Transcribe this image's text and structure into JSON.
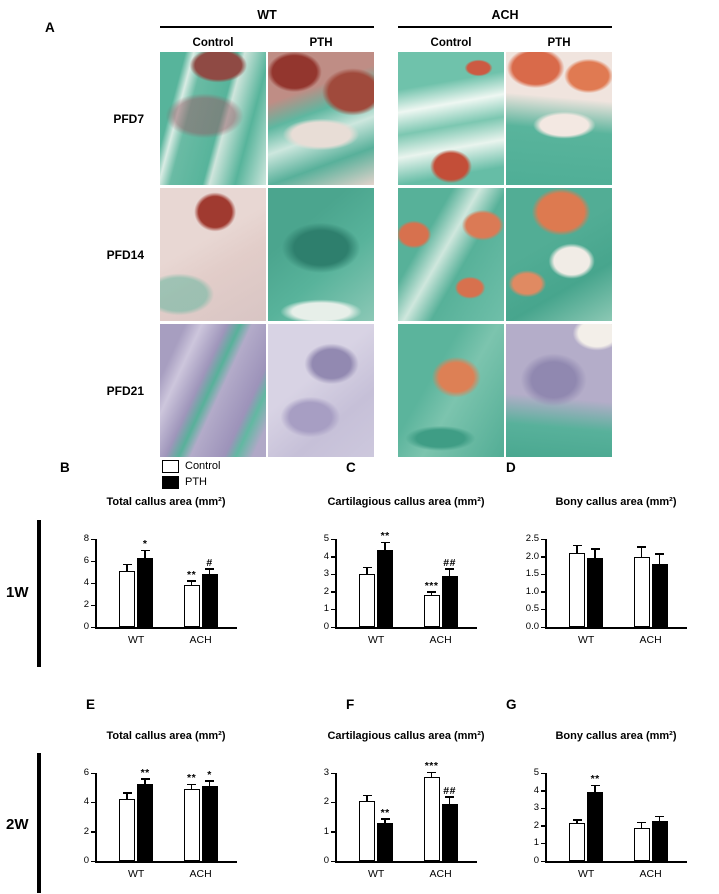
{
  "panel_a": {
    "label": "A",
    "group_headers": [
      "WT",
      "ACH"
    ],
    "column_headers": [
      "Control",
      "PTH",
      "Control",
      "PTH"
    ],
    "row_labels": [
      "PFD7",
      "PFD14",
      "PFD21"
    ]
  },
  "legend": {
    "items": [
      {
        "label": "Control",
        "color": "#ffffff"
      },
      {
        "label": "PTH",
        "color": "#000000"
      }
    ]
  },
  "time_groups": [
    {
      "label": "1W",
      "panels": [
        "B",
        "C",
        "D"
      ]
    },
    {
      "label": "2W",
      "panels": [
        "E",
        "F",
        "G"
      ]
    }
  ],
  "chart_data": [
    {
      "panel": "B",
      "timepoint": "1W",
      "type": "bar",
      "title": "Total callus area (mm²)",
      "categories": [
        "WT",
        "ACH"
      ],
      "series": [
        {
          "name": "Control",
          "color": "#ffffff",
          "values": [
            5.1,
            3.8
          ],
          "errors": [
            0.5,
            0.3
          ],
          "sig": [
            "",
            "**"
          ]
        },
        {
          "name": "PTH",
          "color": "#000000",
          "values": [
            6.3,
            4.8
          ],
          "errors": [
            0.6,
            0.4
          ],
          "sig": [
            "*",
            "#"
          ]
        }
      ],
      "ylim": [
        0,
        8
      ],
      "yticks": [
        "0",
        "2",
        "4",
        "6",
        "8"
      ]
    },
    {
      "panel": "C",
      "timepoint": "1W",
      "type": "bar",
      "title": "Cartilagious callus area (mm²)",
      "categories": [
        "WT",
        "ACH"
      ],
      "series": [
        {
          "name": "Control",
          "color": "#ffffff",
          "values": [
            3.0,
            1.8
          ],
          "errors": [
            0.35,
            0.15
          ],
          "sig": [
            "",
            "***"
          ]
        },
        {
          "name": "PTH",
          "color": "#000000",
          "values": [
            4.35,
            2.9
          ],
          "errors": [
            0.4,
            0.35
          ],
          "sig": [
            "**",
            "##"
          ]
        }
      ],
      "ylim": [
        0,
        5
      ],
      "yticks": [
        "0",
        "1",
        "2",
        "3",
        "4",
        "5"
      ]
    },
    {
      "panel": "D",
      "timepoint": "1W",
      "type": "bar",
      "title": "Bony callus area (mm²)",
      "categories": [
        "WT",
        "ACH"
      ],
      "series": [
        {
          "name": "Control",
          "color": "#ffffff",
          "values": [
            2.1,
            2.0
          ],
          "errors": [
            0.2,
            0.25
          ],
          "sig": [
            "",
            ""
          ]
        },
        {
          "name": "PTH",
          "color": "#000000",
          "values": [
            1.95,
            1.8
          ],
          "errors": [
            0.25,
            0.25
          ],
          "sig": [
            "",
            ""
          ]
        }
      ],
      "ylim": [
        0,
        2.5
      ],
      "yticks": [
        "0.0",
        "0.5",
        "1.0",
        "1.5",
        "2.0",
        "2.5"
      ]
    },
    {
      "panel": "E",
      "timepoint": "2W",
      "type": "bar",
      "title": "Total callus area (mm²)",
      "categories": [
        "WT",
        "ACH"
      ],
      "series": [
        {
          "name": "Control",
          "color": "#ffffff",
          "values": [
            4.2,
            4.9
          ],
          "errors": [
            0.4,
            0.25
          ],
          "sig": [
            "",
            "**"
          ]
        },
        {
          "name": "PTH",
          "color": "#000000",
          "values": [
            5.25,
            5.1
          ],
          "errors": [
            0.3,
            0.3
          ],
          "sig": [
            "**",
            "*"
          ]
        }
      ],
      "ylim": [
        0,
        6
      ],
      "yticks": [
        "0",
        "2",
        "4",
        "6"
      ]
    },
    {
      "panel": "F",
      "timepoint": "2W",
      "type": "bar",
      "title": "Cartilagious callus area (mm²)",
      "categories": [
        "WT",
        "ACH"
      ],
      "series": [
        {
          "name": "Control",
          "color": "#ffffff",
          "values": [
            2.05,
            2.85
          ],
          "errors": [
            0.15,
            0.15
          ],
          "sig": [
            "",
            "***"
          ]
        },
        {
          "name": "PTH",
          "color": "#000000",
          "values": [
            1.3,
            1.95
          ],
          "errors": [
            0.1,
            0.2
          ],
          "sig": [
            "**",
            "##"
          ]
        }
      ],
      "ylim": [
        0,
        3
      ],
      "yticks": [
        "0",
        "1",
        "2",
        "3"
      ]
    },
    {
      "panel": "G",
      "timepoint": "2W",
      "type": "bar",
      "title": "Bony callus area (mm²)",
      "categories": [
        "WT",
        "ACH"
      ],
      "series": [
        {
          "name": "Control",
          "color": "#ffffff",
          "values": [
            2.15,
            1.9
          ],
          "errors": [
            0.15,
            0.25
          ],
          "sig": [
            "",
            ""
          ]
        },
        {
          "name": "PTH",
          "color": "#000000",
          "values": [
            3.9,
            2.25
          ],
          "errors": [
            0.35,
            0.25
          ],
          "sig": [
            "**",
            ""
          ]
        }
      ],
      "ylim": [
        0,
        5
      ],
      "yticks": [
        "0",
        "1",
        "2",
        "3",
        "4",
        "5"
      ]
    }
  ]
}
